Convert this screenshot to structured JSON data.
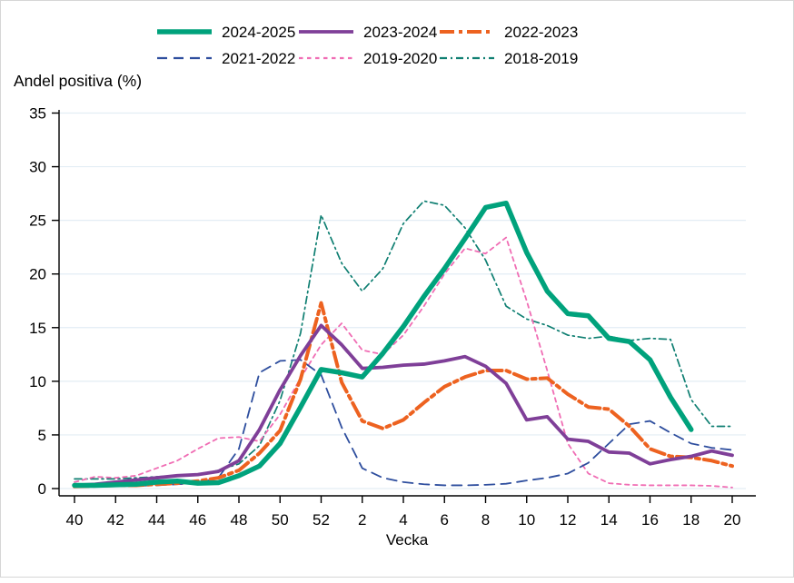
{
  "figure": {
    "background": "#ffffff",
    "grid_color": "#e3edf4",
    "axis_color": "#000000",
    "border_color": "#d6d6d6"
  },
  "chart_data": {
    "type": "line",
    "title": "Andel positiva (%)",
    "xlabel": "Vecka",
    "ylabel": "Andel positiva (%)",
    "ylim": [
      0,
      35
    ],
    "grid": true,
    "legend_position": "top",
    "y_ticks": [
      0,
      5,
      10,
      15,
      20,
      25,
      30,
      35
    ],
    "x_tick_labels": [
      "40",
      "42",
      "44",
      "46",
      "48",
      "50",
      "52",
      "2",
      "4",
      "6",
      "8",
      "10",
      "12",
      "14",
      "16",
      "18",
      "20"
    ],
    "categories": [
      "40",
      "41",
      "42",
      "43",
      "44",
      "45",
      "46",
      "47",
      "48",
      "49",
      "50",
      "51",
      "52",
      "1",
      "2",
      "3",
      "4",
      "5",
      "6",
      "7",
      "8",
      "9",
      "10",
      "11",
      "12",
      "13",
      "14",
      "15",
      "16",
      "17",
      "18",
      "19",
      "20"
    ],
    "series": [
      {
        "name": "2024-2025",
        "color": "#00a27c",
        "style": "solid",
        "width": 5.5,
        "values": [
          0.3,
          0.3,
          0.35,
          0.4,
          0.6,
          0.7,
          0.5,
          0.55,
          1.2,
          2.1,
          4.2,
          7.6,
          11.1,
          10.8,
          10.4,
          12.6,
          15.1,
          17.9,
          20.5,
          23.3,
          26.2,
          26.6,
          22.0,
          18.4,
          16.3,
          16.1,
          14.0,
          13.7,
          12.0,
          8.5,
          5.5,
          null,
          null
        ]
      },
      {
        "name": "2023-2024",
        "color": "#7f3f98",
        "style": "solid",
        "width": 3.8,
        "values": [
          0.3,
          0.4,
          0.6,
          0.8,
          1.0,
          1.2,
          1.3,
          1.6,
          2.6,
          5.5,
          9.2,
          12.4,
          15.2,
          13.4,
          11.2,
          11.3,
          11.5,
          11.6,
          11.9,
          12.3,
          11.4,
          9.8,
          6.4,
          6.7,
          4.6,
          4.4,
          3.4,
          3.3,
          2.3,
          2.7,
          3.0,
          3.5,
          3.1
        ]
      },
      {
        "name": "2022-2023",
        "color": "#ed6220",
        "style": "longdash-dot",
        "width": 4,
        "values": [
          0.2,
          0.25,
          0.3,
          0.3,
          0.4,
          0.5,
          0.7,
          1.0,
          1.7,
          3.3,
          5.4,
          10.2,
          17.3,
          9.9,
          6.3,
          5.6,
          6.4,
          8.0,
          9.5,
          10.4,
          11.0,
          11.0,
          10.2,
          10.3,
          8.8,
          7.6,
          7.4,
          5.8,
          3.7,
          3.0,
          2.9,
          2.6,
          2.1
        ]
      },
      {
        "name": "2021-2022",
        "color": "#2e4e9e",
        "style": "dash",
        "width": 1.8,
        "values": [
          0.15,
          0.2,
          0.2,
          0.25,
          0.3,
          0.4,
          0.5,
          1.0,
          3.7,
          10.8,
          11.9,
          12.0,
          10.6,
          5.7,
          1.9,
          1.0,
          0.6,
          0.4,
          0.3,
          0.3,
          0.35,
          0.45,
          0.75,
          1.0,
          1.4,
          2.4,
          4.2,
          6.0,
          6.3,
          5.2,
          4.2,
          3.8,
          3.6
        ]
      },
      {
        "name": "2019-2020",
        "color": "#f06db4",
        "style": "shortdash",
        "width": 1.8,
        "values": [
          0.6,
          1.1,
          1.0,
          1.2,
          1.9,
          2.6,
          3.7,
          4.7,
          4.8,
          4.4,
          6.9,
          10.3,
          13.4,
          15.4,
          12.9,
          12.5,
          14.3,
          17.0,
          20.0,
          22.4,
          21.9,
          23.4,
          17.5,
          11.0,
          4.2,
          1.4,
          0.5,
          0.35,
          0.3,
          0.3,
          0.3,
          0.25,
          0.1
        ]
      },
      {
        "name": "2018-2019",
        "color": "#0f7f72",
        "style": "dash-dot",
        "width": 1.7,
        "values": [
          0.9,
          0.9,
          0.9,
          1.0,
          1.1,
          1.2,
          1.3,
          1.7,
          2.3,
          4.0,
          8.2,
          14.5,
          25.5,
          21.0,
          18.4,
          20.5,
          24.7,
          26.8,
          26.4,
          24.3,
          21.3,
          17.0,
          15.8,
          15.2,
          14.3,
          14.0,
          14.2,
          13.8,
          14.0,
          13.9,
          8.3,
          5.8,
          5.8
        ]
      }
    ]
  }
}
